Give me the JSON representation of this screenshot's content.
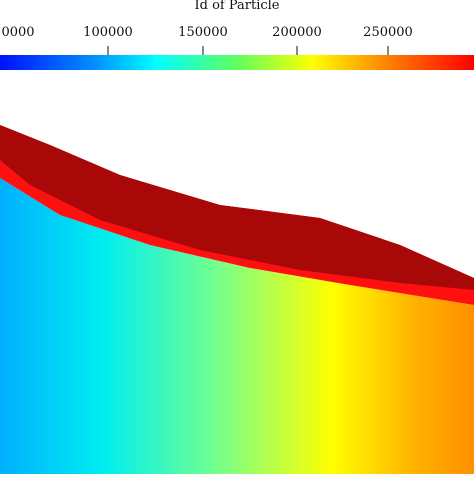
{
  "colorbar": {
    "title": "Id of Particle",
    "tick_labels": [
      "0000",
      "100000",
      "150000",
      "200000",
      "250000"
    ]
  }
}
